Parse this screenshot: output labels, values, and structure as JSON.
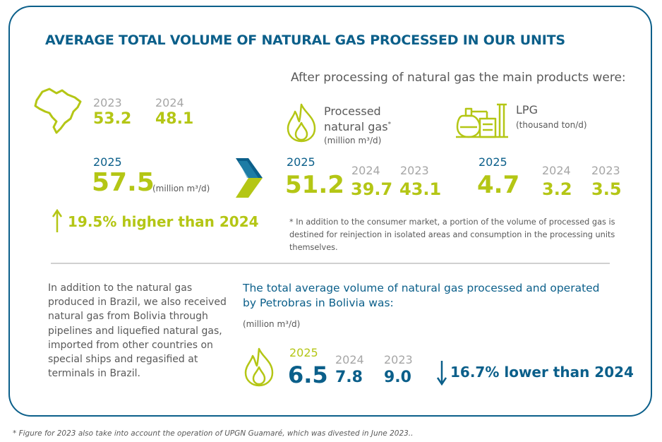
{
  "title": "AVERAGE TOTAL VOLUME OF NATURAL GAS PROCESSED IN OUR UNITS",
  "brazil": {
    "y2023_label": "2023",
    "y2023_value": "53.2",
    "y2024_label": "2024",
    "y2024_value": "48.1",
    "y2025_label": "2025",
    "y2025_value": "57.5",
    "unit": "(million m³/d)",
    "change_text": "19.5% higher than 2024"
  },
  "products": {
    "intro": "After processing of natural gas the main products were:",
    "gas": {
      "label_line1": "Processed",
      "label_line2": "natural gas",
      "footnote_mark": "*",
      "unit": "(million m³/d)",
      "y2025_label": "2025",
      "y2025_value": "51.2",
      "y2024_label": "2024",
      "y2024_value": "39.7",
      "y2023_label": "2023",
      "y2023_value": "43.1"
    },
    "lpg": {
      "label": "LPG",
      "unit": "(thousand ton/d)",
      "y2025_label": "2025",
      "y2025_value": "4.7",
      "y2024_label": "2024",
      "y2024_value": "3.2",
      "y2023_label": "2023",
      "y2023_value": "3.5"
    },
    "footnote": "* In addition to the consumer market, a portion of the volume of processed gas is destined for reinjection in isolated areas and consumption in the processing units themselves."
  },
  "imports_note": "In addition to the natural gas produced in Brazil, we also received natural gas from Bolivia through pipelines and liquefied natural gas, imported from other countries on special ships and regasified at terminals in Brazil.",
  "bolivia": {
    "heading_line1": "The total average volume of natural gas processed and operated",
    "heading_line2": "by Petrobras in Bolivia was:",
    "unit": "(million m³/d)",
    "y2025_label": "2025",
    "y2025_value": "6.5",
    "y2024_label": "2024",
    "y2024_value": "7.8",
    "y2023_label": "2023",
    "y2023_value": "9.0",
    "change_text": "16.7% lower than 2024"
  },
  "footer_note": "* Figure for 2023 also take into account the operation of UPGN Guamaré, which was divested in June 2023..",
  "colors": {
    "blue": "#0b5f8a",
    "lime": "#b4c615",
    "gray": "#a6a6a6",
    "text": "#595959"
  },
  "icons": [
    "brazil-map-icon",
    "chevron-right-icon",
    "flame-icon",
    "lpg-plant-icon",
    "arrow-up-icon",
    "arrow-down-icon"
  ]
}
